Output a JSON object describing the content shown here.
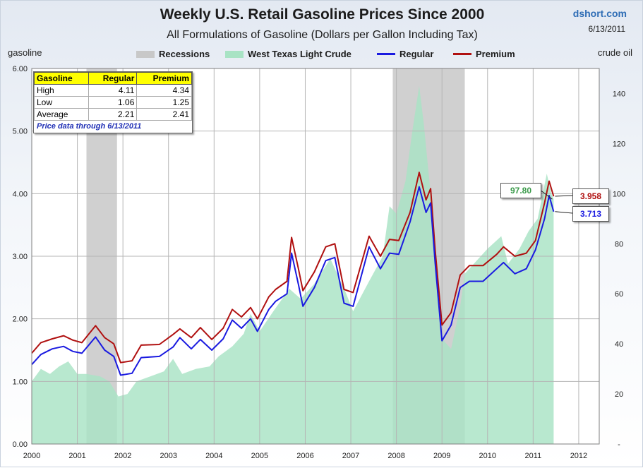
{
  "header": {
    "title": "Weekly U.S. Retail Gasoline Prices Since 2000",
    "subtitle": "All Formulations of Gasoline (Dollars per Gallon Including Tax)",
    "source": "dshort.com",
    "date": "6/13/2011"
  },
  "colors": {
    "regular": "#1a1ae0",
    "premium": "#b01010",
    "crude": "#a8e3c4",
    "recession": "#c8c8c8",
    "table_header": "#ffff00",
    "crude_label": "#3a9a4a"
  },
  "stats_table": {
    "headers": [
      "Gasoline",
      "Regular",
      "Premium"
    ],
    "rows": [
      [
        "High",
        "4.11",
        "4.34"
      ],
      [
        "Low",
        "1.06",
        "1.25"
      ],
      [
        "Average",
        "2.21",
        "2.41"
      ]
    ],
    "note": "Price data through 6/13/2011"
  },
  "callouts": {
    "crude_last": "97.80",
    "premium_last": "3.958",
    "regular_last": "3.713"
  },
  "chart_data": {
    "type": "line",
    "title": "Weekly U.S. Retail Gasoline Prices Since 2000",
    "subtitle": "All Formulations of Gasoline (Dollars per Gallon Including Tax)",
    "ylabel": "gasoline",
    "y2label": "crude oil",
    "ylim": [
      0,
      6
    ],
    "y2lim": [
      0,
      150
    ],
    "xlim": [
      2000,
      2012.45
    ],
    "yticks": [
      "0.00",
      "1.00",
      "2.00",
      "3.00",
      "4.00",
      "5.00",
      "6.00"
    ],
    "y2ticks": [
      "-",
      "20",
      "40",
      "60",
      "80",
      "100",
      "120",
      "140"
    ],
    "xticks": [
      "2000",
      "2001",
      "2002",
      "2003",
      "2004",
      "2005",
      "2006",
      "2007",
      "2008",
      "2009",
      "2010",
      "2011",
      "2012"
    ],
    "grid": true,
    "legend": {
      "placement": "top",
      "items": [
        "Recessions",
        "West Texas Light Crude",
        "Regular",
        "Premium"
      ]
    },
    "recessions": [
      [
        2001.2,
        2001.87
      ],
      [
        2007.92,
        2009.5
      ]
    ],
    "series": [
      {
        "name": "West Texas Light Crude",
        "kind": "area",
        "axis": "right",
        "points": [
          [
            2000.0,
            25
          ],
          [
            2000.2,
            30
          ],
          [
            2000.4,
            28
          ],
          [
            2000.6,
            31
          ],
          [
            2000.8,
            33
          ],
          [
            2001.0,
            28
          ],
          [
            2001.2,
            28
          ],
          [
            2001.5,
            27
          ],
          [
            2001.7,
            25
          ],
          [
            2001.9,
            19
          ],
          [
            2002.1,
            20
          ],
          [
            2002.3,
            25
          ],
          [
            2002.6,
            27
          ],
          [
            2002.9,
            29
          ],
          [
            2003.1,
            34
          ],
          [
            2003.3,
            28
          ],
          [
            2003.6,
            30
          ],
          [
            2003.9,
            31
          ],
          [
            2004.1,
            35
          ],
          [
            2004.4,
            39
          ],
          [
            2004.65,
            44
          ],
          [
            2004.8,
            52
          ],
          [
            2005.0,
            45
          ],
          [
            2005.3,
            53
          ],
          [
            2005.65,
            62
          ],
          [
            2005.9,
            58
          ],
          [
            2006.2,
            64
          ],
          [
            2006.55,
            74
          ],
          [
            2006.9,
            60
          ],
          [
            2007.05,
            53
          ],
          [
            2007.4,
            65
          ],
          [
            2007.7,
            75
          ],
          [
            2007.85,
            95
          ],
          [
            2008.0,
            92
          ],
          [
            2008.2,
            105
          ],
          [
            2008.35,
            125
          ],
          [
            2008.5,
            143
          ],
          [
            2008.6,
            128
          ],
          [
            2008.75,
            100
          ],
          [
            2008.9,
            60
          ],
          [
            2009.0,
            42
          ],
          [
            2009.2,
            38
          ],
          [
            2009.4,
            55
          ],
          [
            2009.5,
            68
          ],
          [
            2009.7,
            72
          ],
          [
            2010.0,
            78
          ],
          [
            2010.3,
            83
          ],
          [
            2010.45,
            72
          ],
          [
            2010.7,
            78
          ],
          [
            2010.9,
            85
          ],
          [
            2011.1,
            90
          ],
          [
            2011.3,
            108
          ],
          [
            2011.4,
            100
          ],
          [
            2011.45,
            97.8
          ]
        ]
      },
      {
        "name": "Premium",
        "kind": "line",
        "axis": "left",
        "points": [
          [
            2000.0,
            1.45
          ],
          [
            2000.2,
            1.62
          ],
          [
            2000.45,
            1.68
          ],
          [
            2000.7,
            1.73
          ],
          [
            2000.9,
            1.66
          ],
          [
            2001.1,
            1.62
          ],
          [
            2001.4,
            1.89
          ],
          [
            2001.6,
            1.7
          ],
          [
            2001.8,
            1.6
          ],
          [
            2001.95,
            1.3
          ],
          [
            2002.2,
            1.33
          ],
          [
            2002.4,
            1.58
          ],
          [
            2002.8,
            1.59
          ],
          [
            2003.1,
            1.75
          ],
          [
            2003.25,
            1.84
          ],
          [
            2003.5,
            1.7
          ],
          [
            2003.7,
            1.86
          ],
          [
            2003.95,
            1.67
          ],
          [
            2004.2,
            1.85
          ],
          [
            2004.4,
            2.15
          ],
          [
            2004.6,
            2.03
          ],
          [
            2004.8,
            2.18
          ],
          [
            2004.95,
            2.0
          ],
          [
            2005.2,
            2.35
          ],
          [
            2005.35,
            2.47
          ],
          [
            2005.6,
            2.6
          ],
          [
            2005.7,
            3.3
          ],
          [
            2005.85,
            2.8
          ],
          [
            2005.95,
            2.45
          ],
          [
            2006.2,
            2.75
          ],
          [
            2006.45,
            3.15
          ],
          [
            2006.65,
            3.2
          ],
          [
            2006.85,
            2.47
          ],
          [
            2007.05,
            2.42
          ],
          [
            2007.4,
            3.32
          ],
          [
            2007.65,
            3.0
          ],
          [
            2007.85,
            3.27
          ],
          [
            2008.05,
            3.25
          ],
          [
            2008.3,
            3.7
          ],
          [
            2008.5,
            4.34
          ],
          [
            2008.65,
            3.9
          ],
          [
            2008.75,
            4.08
          ],
          [
            2008.85,
            3.1
          ],
          [
            2009.0,
            1.9
          ],
          [
            2009.2,
            2.1
          ],
          [
            2009.4,
            2.7
          ],
          [
            2009.6,
            2.85
          ],
          [
            2009.9,
            2.85
          ],
          [
            2010.2,
            3.03
          ],
          [
            2010.35,
            3.15
          ],
          [
            2010.6,
            3.0
          ],
          [
            2010.85,
            3.05
          ],
          [
            2011.05,
            3.25
          ],
          [
            2011.25,
            3.85
          ],
          [
            2011.35,
            4.2
          ],
          [
            2011.45,
            3.958
          ]
        ]
      },
      {
        "name": "Regular",
        "kind": "line",
        "axis": "left",
        "points": [
          [
            2000.0,
            1.27
          ],
          [
            2000.2,
            1.43
          ],
          [
            2000.45,
            1.52
          ],
          [
            2000.7,
            1.56
          ],
          [
            2000.9,
            1.48
          ],
          [
            2001.1,
            1.45
          ],
          [
            2001.4,
            1.71
          ],
          [
            2001.6,
            1.5
          ],
          [
            2001.8,
            1.4
          ],
          [
            2001.95,
            1.1
          ],
          [
            2002.2,
            1.13
          ],
          [
            2002.4,
            1.38
          ],
          [
            2002.8,
            1.4
          ],
          [
            2003.1,
            1.55
          ],
          [
            2003.25,
            1.7
          ],
          [
            2003.5,
            1.52
          ],
          [
            2003.7,
            1.67
          ],
          [
            2003.95,
            1.5
          ],
          [
            2004.2,
            1.68
          ],
          [
            2004.4,
            1.98
          ],
          [
            2004.6,
            1.85
          ],
          [
            2004.8,
            2.0
          ],
          [
            2004.95,
            1.8
          ],
          [
            2005.2,
            2.15
          ],
          [
            2005.35,
            2.28
          ],
          [
            2005.6,
            2.4
          ],
          [
            2005.7,
            3.05
          ],
          [
            2005.85,
            2.55
          ],
          [
            2005.95,
            2.2
          ],
          [
            2006.2,
            2.5
          ],
          [
            2006.45,
            2.93
          ],
          [
            2006.65,
            2.98
          ],
          [
            2006.85,
            2.25
          ],
          [
            2007.05,
            2.2
          ],
          [
            2007.4,
            3.15
          ],
          [
            2007.65,
            2.8
          ],
          [
            2007.85,
            3.05
          ],
          [
            2008.05,
            3.03
          ],
          [
            2008.3,
            3.55
          ],
          [
            2008.5,
            4.11
          ],
          [
            2008.65,
            3.7
          ],
          [
            2008.75,
            3.85
          ],
          [
            2008.85,
            2.9
          ],
          [
            2009.0,
            1.65
          ],
          [
            2009.2,
            1.9
          ],
          [
            2009.4,
            2.5
          ],
          [
            2009.6,
            2.6
          ],
          [
            2009.9,
            2.6
          ],
          [
            2010.2,
            2.8
          ],
          [
            2010.35,
            2.9
          ],
          [
            2010.6,
            2.72
          ],
          [
            2010.85,
            2.8
          ],
          [
            2011.05,
            3.1
          ],
          [
            2011.25,
            3.6
          ],
          [
            2011.35,
            3.97
          ],
          [
            2011.45,
            3.713
          ]
        ]
      }
    ]
  }
}
